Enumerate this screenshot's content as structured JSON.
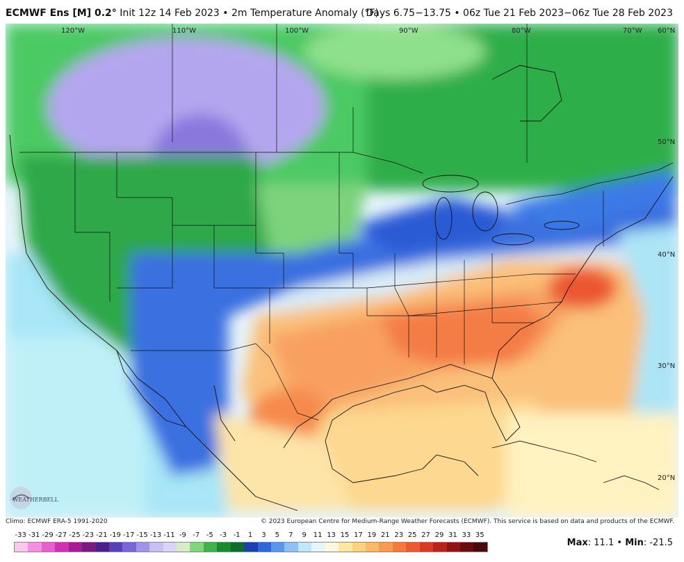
{
  "header": {
    "model": "ECMWF Ens [M] 0.2°",
    "init": "Init 12z 14 Feb 2023",
    "separator": "•",
    "field": "2m Temperature Anomaly (°F)",
    "valid": "Days 6.75−13.75 • 06z Tue 21 Feb 2023−06z Tue 28 Feb 2023"
  },
  "map": {
    "lon_labels": [
      "120°W",
      "110°W",
      "100°W",
      "90°W",
      "80°W",
      "70°W"
    ],
    "lat_labels": [
      "60°N",
      "50°N",
      "40°N",
      "30°N",
      "20°N"
    ]
  },
  "logo": {
    "text": "WEATHERBELL"
  },
  "footer": {
    "climo": "Climo: ECMWF ERA-5 1991-2020",
    "copyright": "© 2023 European Centre for Medium-Range Weather Forecasts (ECMWF). This service is based on data and products of the ECMWF."
  },
  "legend": {
    "labels": [
      "-33",
      "-31",
      "-29",
      "-27",
      "-25",
      "-23",
      "-21",
      "-19",
      "-17",
      "-15",
      "-13",
      "-11",
      "-9",
      "-7",
      "-5",
      "-3",
      "-1",
      "1",
      "3",
      "5",
      "7",
      "9",
      "11",
      "13",
      "15",
      "17",
      "19",
      "21",
      "23",
      "25",
      "27",
      "29",
      "31",
      "33",
      "35"
    ],
    "colors": [
      "#f9c8ee",
      "#f292de",
      "#e85ecd",
      "#d12fb6",
      "#a61a96",
      "#7a1a7e",
      "#4a1f8c",
      "#5a3fb8",
      "#7a66d6",
      "#a394e8",
      "#c8bff2",
      "#dcd4f6",
      "#d8ecc8",
      "#7fd67e",
      "#3fb24a",
      "#178c2a",
      "#0f6b2e",
      "#1a3fb0",
      "#2e66dc",
      "#5a96ec",
      "#8ec0f4",
      "#bfe6fb",
      "#e6f4fb",
      "#fff8dc",
      "#fde8a0",
      "#fcd280",
      "#fbb866",
      "#f89a50",
      "#f57a3e",
      "#ec5a30",
      "#d83a24",
      "#b8241c",
      "#901414",
      "#6a0c0c",
      "#4a0808"
    ]
  },
  "stats": {
    "max_label": "Max",
    "max_value": "11.1",
    "sep": "•",
    "min_label": "Min",
    "min_value": "-21.5"
  }
}
